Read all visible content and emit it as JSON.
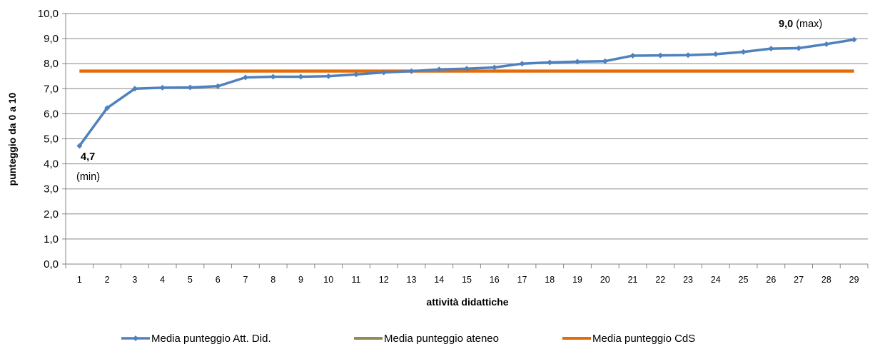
{
  "chart_data": {
    "type": "line",
    "xlabel": "attività didattiche",
    "ylabel": "punteggio da 0 a 10",
    "ylim": [
      0,
      10
    ],
    "y_ticks": [
      "0,0",
      "1,0",
      "2,0",
      "3,0",
      "4,0",
      "5,0",
      "6,0",
      "7,0",
      "8,0",
      "9,0",
      "10,0"
    ],
    "categories": [
      "1",
      "2",
      "3",
      "4",
      "5",
      "6",
      "7",
      "8",
      "9",
      "10",
      "11",
      "12",
      "13",
      "14",
      "15",
      "16",
      "17",
      "18",
      "19",
      "20",
      "21",
      "22",
      "23",
      "24",
      "25",
      "26",
      "27",
      "28",
      "29"
    ],
    "grid": "horizontal",
    "legend_position": "bottom",
    "series": [
      {
        "name": "Media punteggio Att. Did.",
        "color": "#4F81BD",
        "marker": "diamond",
        "values": [
          4.72,
          6.23,
          7.0,
          7.04,
          7.05,
          7.1,
          7.45,
          7.48,
          7.48,
          7.5,
          7.57,
          7.65,
          7.7,
          7.77,
          7.8,
          7.85,
          8.0,
          8.05,
          8.08,
          8.1,
          8.32,
          8.33,
          8.34,
          8.38,
          8.47,
          8.6,
          8.62,
          8.78,
          8.96
        ]
      },
      {
        "name": "Media punteggio ateneo",
        "color": "#948A54",
        "values": [
          7.71,
          7.71,
          7.71,
          7.71,
          7.71,
          7.71,
          7.71,
          7.71,
          7.71,
          7.71,
          7.71,
          7.71,
          7.71,
          7.71,
          7.71,
          7.71,
          7.71,
          7.71,
          7.71,
          7.71,
          7.71,
          7.71,
          7.71,
          7.71,
          7.71,
          7.71,
          7.71,
          7.71,
          7.71
        ]
      },
      {
        "name": "Media punteggio CdS",
        "color": "#E36C09",
        "values": [
          7.7,
          7.7,
          7.7,
          7.7,
          7.7,
          7.7,
          7.7,
          7.7,
          7.7,
          7.7,
          7.7,
          7.7,
          7.7,
          7.7,
          7.7,
          7.7,
          7.7,
          7.7,
          7.7,
          7.7,
          7.7,
          7.7,
          7.7,
          7.7,
          7.7,
          7.7,
          7.7,
          7.7,
          7.7
        ]
      }
    ],
    "annotations": {
      "min_value": "4,7",
      "min_label": "(min)",
      "max_value": "9,0",
      "max_label": " (max)"
    }
  }
}
